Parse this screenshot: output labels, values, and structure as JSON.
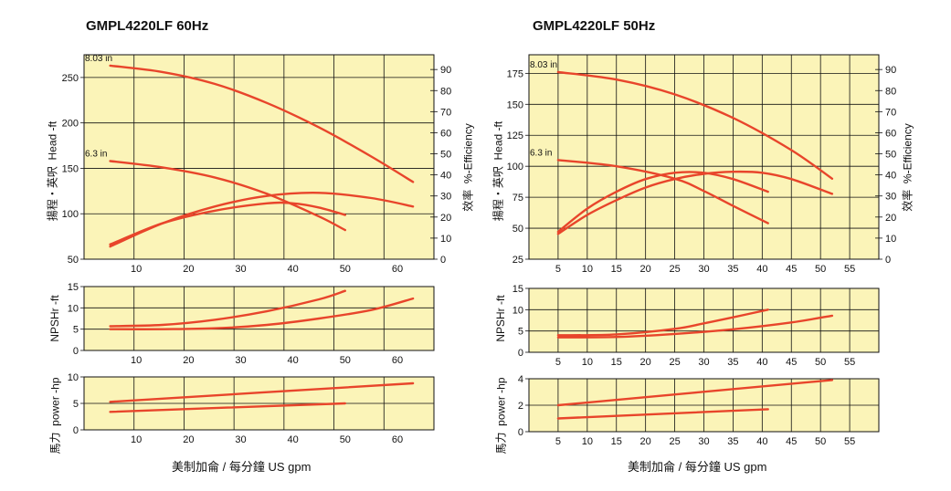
{
  "colors": {
    "plot_bg": "#fbf4b8",
    "curve": "#e8452b",
    "grid": "#111111"
  },
  "chart_data": [
    {
      "id": "hz60",
      "type": "line",
      "title": "GMPL4220LF  60Hz",
      "xlabel": "美制加侖 / 每分鐘  US gpm",
      "x_ticks": [
        10,
        20,
        30,
        40,
        50,
        60
      ],
      "xlim": [
        0,
        67
      ],
      "head": {
        "ylabel_cn": "揚程・英呎",
        "ylabel": "Head -ft",
        "ylim": [
          50,
          275
        ],
        "yticks": [
          50,
          100,
          150,
          200,
          250
        ],
        "eff_label_cn": "效率",
        "eff_label": "%-Efficiency",
        "eff_lim": [
          0,
          97
        ],
        "eff_ticks": [
          0,
          10,
          20,
          30,
          40,
          50,
          60,
          70,
          80,
          90
        ],
        "series": [
          {
            "name": "8.03 in",
            "axis": "left",
            "x": [
              5,
              15,
              25,
              35,
              45,
              55,
              63
            ],
            "y": [
              263,
              256,
              243,
              222,
              195,
              163,
              135
            ]
          },
          {
            "name": "6.3 in",
            "axis": "left",
            "x": [
              5,
              15,
              25,
              35,
              45,
              50
            ],
            "y": [
              158,
              151,
              140,
              122,
              97,
              82
            ]
          },
          {
            "name": "eff 8.03 in",
            "axis": "right",
            "x": [
              5,
              15,
              25,
              35,
              45,
              55,
              63
            ],
            "y": [
              6,
              17,
              25,
              30,
              31.5,
              29,
              25
            ]
          },
          {
            "name": "eff 6.3 in",
            "axis": "right",
            "x": [
              5,
              15,
              25,
              35,
              40,
              45,
              50
            ],
            "y": [
              7,
              17,
              23,
              26.5,
              26.5,
              24.5,
              21
            ]
          }
        ]
      },
      "npshr": {
        "ylabel": "NPSHr -ft",
        "ylim": [
          0,
          15
        ],
        "yticks": [
          0,
          5,
          10,
          15
        ],
        "series": [
          {
            "name": "8.03 in",
            "x": [
              5,
              15,
              25,
              35,
              45,
              55,
              63
            ],
            "y": [
              5,
              5,
              5.2,
              6,
              7.5,
              9.5,
              12.2
            ]
          },
          {
            "name": "6.3 in",
            "x": [
              5,
              15,
              25,
              35,
              45,
              50
            ],
            "y": [
              5.7,
              6,
              7.2,
              9.2,
              12,
              14
            ]
          }
        ]
      },
      "power": {
        "ylabel": "power -hp",
        "ylabel_cn": "馬力",
        "ylim": [
          0,
          10
        ],
        "yticks": [
          0,
          5,
          10
        ],
        "series": [
          {
            "name": "8.03 in",
            "x": [
              5,
              63
            ],
            "y": [
              5.3,
              8.8
            ]
          },
          {
            "name": "6.3 in",
            "x": [
              5,
              50
            ],
            "y": [
              3.4,
              5.0
            ]
          }
        ]
      }
    },
    {
      "id": "hz50",
      "type": "line",
      "title": "GMPL4220LF  50Hz",
      "xlabel": "美制加侖 / 每分鐘  US gpm",
      "x_ticks": [
        5,
        10,
        15,
        20,
        25,
        30,
        35,
        40,
        45,
        50,
        55
      ],
      "xlim": [
        0,
        60
      ],
      "head": {
        "ylabel_cn": "揚程・英呎",
        "ylabel": "Head -ft",
        "ylim": [
          25,
          190
        ],
        "yticks": [
          25,
          50,
          75,
          100,
          125,
          150,
          175
        ],
        "eff_label_cn": "效率",
        "eff_label": "%-Efficiency",
        "eff_lim": [
          0,
          97
        ],
        "eff_ticks": [
          0,
          10,
          20,
          30,
          40,
          50,
          60,
          70,
          80,
          90
        ],
        "series": [
          {
            "name": "8.03 in",
            "axis": "left",
            "x": [
              5,
              15,
              25,
              35,
              45,
              52
            ],
            "y": [
              176,
              170,
              158,
              139,
              113,
              90
            ]
          },
          {
            "name": "6.3 in",
            "axis": "left",
            "x": [
              5,
              15,
              25,
              30,
              35,
              41
            ],
            "y": [
              105,
              100,
              90,
              80,
              68,
              54
            ]
          },
          {
            "name": "eff 8.03 in",
            "axis": "right",
            "x": [
              5,
              10,
              15,
              20,
              25,
              30,
              35,
              40,
              45,
              52
            ],
            "y": [
              12,
              21,
              28,
              34,
              38,
              40.5,
              41.5,
              41,
              38,
              31
            ]
          },
          {
            "name": "eff 6.3 in",
            "axis": "right",
            "x": [
              5,
              10,
              15,
              20,
              25,
              30,
              35,
              41
            ],
            "y": [
              13,
              24,
              32,
              38,
              41,
              41,
              38,
              32
            ]
          }
        ]
      },
      "npshr": {
        "ylabel": "NPSHr -ft",
        "ylim": [
          0,
          15
        ],
        "yticks": [
          0,
          5,
          10,
          15
        ],
        "series": [
          {
            "name": "8.03 in",
            "x": [
              5,
              15,
              25,
              35,
              45,
              52
            ],
            "y": [
              3.5,
              3.6,
              4.3,
              5.4,
              7,
              8.6
            ]
          },
          {
            "name": "6.3 in",
            "x": [
              5,
              15,
              25,
              30,
              35,
              41
            ],
            "y": [
              4,
              4.2,
              5.5,
              6.8,
              8.2,
              10
            ]
          }
        ]
      },
      "power": {
        "ylabel": "power -hp",
        "ylabel_cn": "馬力",
        "ylim": [
          0,
          4
        ],
        "yticks": [
          0,
          2,
          4
        ],
        "series": [
          {
            "name": "8.03 in",
            "x": [
              5,
              52
            ],
            "y": [
              2.0,
              3.9
            ]
          },
          {
            "name": "6.3 in",
            "x": [
              5,
              41
            ],
            "y": [
              1.0,
              1.7
            ]
          }
        ]
      }
    }
  ]
}
